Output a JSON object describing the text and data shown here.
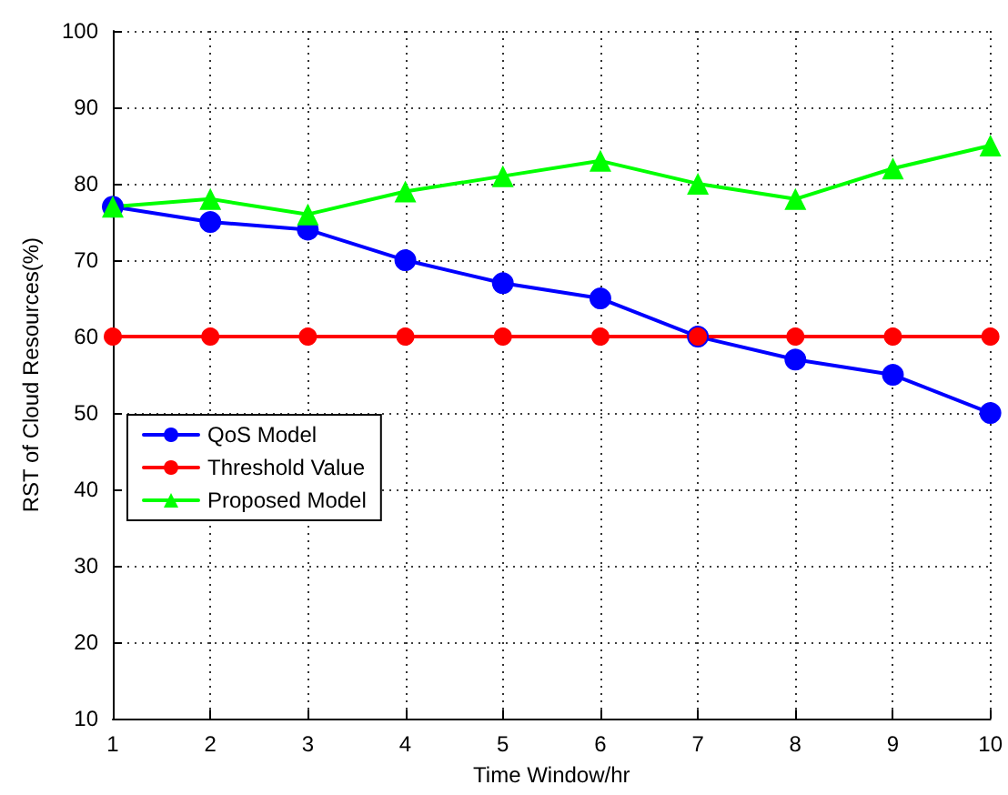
{
  "chart_data": {
    "type": "line",
    "xlabel": "Time Window/hr",
    "ylabel": "RST of Cloud Resources(%)",
    "x": [
      1,
      2,
      3,
      4,
      5,
      6,
      7,
      8,
      9,
      10
    ],
    "series": [
      {
        "name": "QoS Model",
        "color": "#0000ff",
        "marker": "circle",
        "values": [
          77,
          75,
          74,
          70,
          67,
          65,
          60,
          57,
          55,
          50
        ]
      },
      {
        "name": "Threshold Value",
        "color": "#ff0000",
        "marker": "circle",
        "values": [
          60,
          60,
          60,
          60,
          60,
          60,
          60,
          60,
          60,
          60
        ]
      },
      {
        "name": "Proposed Model",
        "color": "#00ff00",
        "marker": "triangle",
        "values": [
          77,
          78,
          76,
          79,
          81,
          83,
          80,
          78,
          82,
          85
        ]
      }
    ],
    "xlim": [
      1,
      10
    ],
    "xticks": [
      1,
      2,
      3,
      4,
      5,
      6,
      7,
      8,
      9,
      10
    ],
    "ylim": [
      10,
      100
    ],
    "yticks": [
      10,
      20,
      30,
      40,
      50,
      60,
      70,
      80,
      90,
      100
    ],
    "grid": true,
    "legend": "left",
    "line_style": "solid"
  }
}
